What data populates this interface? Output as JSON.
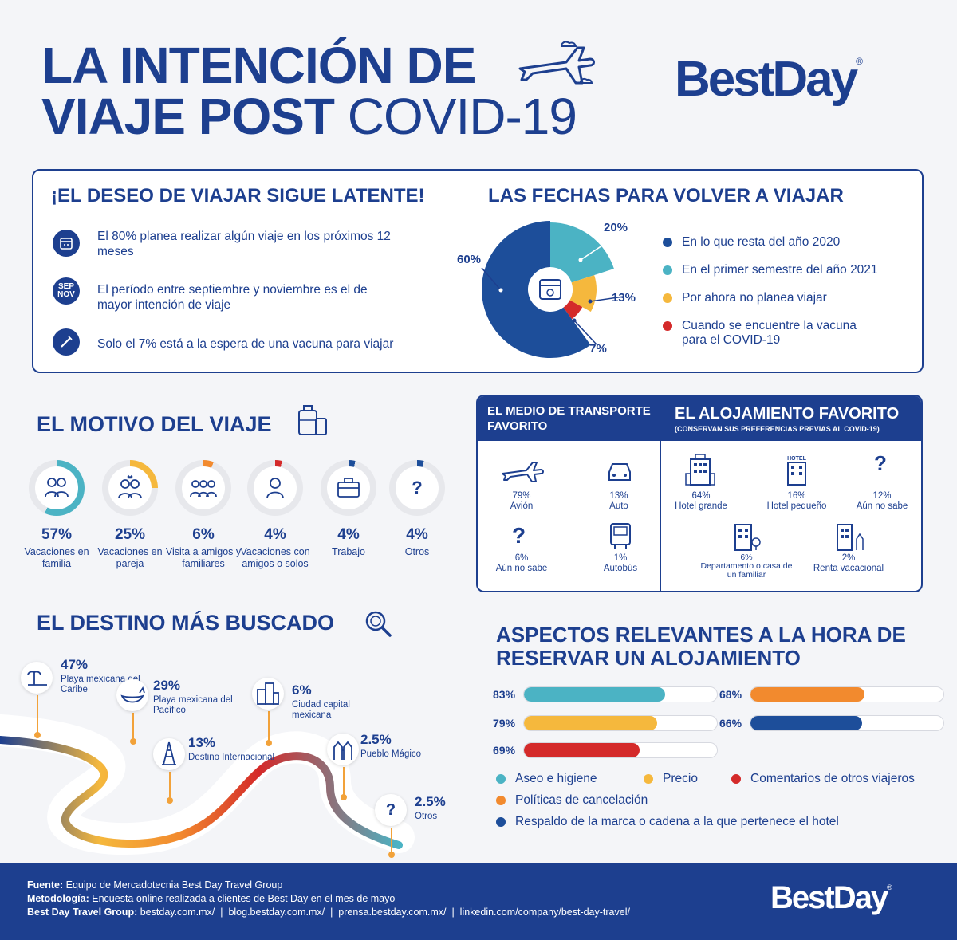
{
  "header": {
    "title_line1": "LA INTENCIÓN DE",
    "title_line2_bold": "VIAJE POST",
    "title_line2_thin": "COVID-19",
    "brand": "BestDay",
    "brand_mark": "®"
  },
  "desire": {
    "heading": "¡EL DESEO DE VIAJAR SIGUE LATENTE!",
    "items": [
      {
        "icon": "calendar-icon",
        "text": "El 80% planea realizar algún viaje en los próximos 12 meses"
      },
      {
        "icon": "sep-nov-icon",
        "badge_line1": "SEP",
        "badge_line2": "NOV",
        "text": "El período entre septiembre y noviembre es el de mayor intención de viaje"
      },
      {
        "icon": "vaccine-icon",
        "text": "Solo el 7% está a la espera de una vacuna para viajar"
      }
    ]
  },
  "dates": {
    "heading": "LAS FECHAS PARA VOLVER A VIAJAR",
    "legend": [
      {
        "label": "En lo que resta del año 2020",
        "color": "#1d4e9a"
      },
      {
        "label": "En el primer semestre del año 2021",
        "color": "#4bb3c4"
      },
      {
        "label": "Por ahora no planea viajar",
        "color": "#f5b83d"
      },
      {
        "label": "Cuando se encuentre la vacuna para el COVID-19",
        "color": "#d42a2a"
      }
    ]
  },
  "chart_data": {
    "type": "pie",
    "categories": [
      "En lo que resta del año 2020",
      "En el primer semestre del año 2021",
      "Por ahora no planea viajar",
      "Cuando se encuentre la vacuna para el COVID-19"
    ],
    "values": [
      60,
      20,
      13,
      7
    ],
    "labels": [
      "60%",
      "20%",
      "13%",
      "7%"
    ],
    "colors": [
      "#1d4e9a",
      "#4bb3c4",
      "#f5b83d",
      "#d42a2a"
    ]
  },
  "motive": {
    "heading": "EL MOTIVO DEL VIAJE",
    "items": [
      {
        "pct": "57%",
        "value": 57,
        "label": "Vacaciones en familia",
        "icon": "family-icon",
        "color": "#4bb3c4"
      },
      {
        "pct": "25%",
        "value": 25,
        "label": "Vacaciones en pareja",
        "icon": "couple-icon",
        "color": "#f5b83d"
      },
      {
        "pct": "6%",
        "value": 6,
        "label": "Visita a amigos y familiares",
        "icon": "friends-icon",
        "color": "#f28a2e"
      },
      {
        "pct": "4%",
        "value": 4,
        "label": "Vacaciones con amigos o solos",
        "icon": "person-icon",
        "color": "#d42a2a"
      },
      {
        "pct": "4%",
        "value": 4,
        "label": "Trabajo",
        "icon": "briefcase-icon",
        "color": "#1d4e9a"
      },
      {
        "pct": "4%",
        "value": 4,
        "label": "Otros",
        "icon": "question-icon",
        "color": "#1d4e9a"
      }
    ]
  },
  "transport": {
    "heading": "EL MEDIO DE TRANSPORTE FAVORITO",
    "items": [
      {
        "pct": "79%",
        "label": "Avión",
        "icon": "plane-icon"
      },
      {
        "pct": "13%",
        "label": "Auto",
        "icon": "car-icon"
      },
      {
        "pct": "6%",
        "label": "Aún no sabe",
        "icon": "question-icon"
      },
      {
        "pct": "1%",
        "label": "Autobús",
        "icon": "bus-icon"
      }
    ]
  },
  "lodging": {
    "heading": "EL ALOJAMIENTO FAVORITO",
    "subheading": "(CONSERVAN SUS PREFERENCIAS PREVIAS AL COVID-19)",
    "items": [
      {
        "pct": "64%",
        "label": "Hotel grande",
        "icon": "hotel-large-icon"
      },
      {
        "pct": "16%",
        "label": "Hotel pequeño",
        "icon": "hotel-small-icon",
        "sign": "HOTEL"
      },
      {
        "pct": "12%",
        "label": "Aún no sabe",
        "icon": "question-icon"
      },
      {
        "pct": "6%",
        "label": "Departamento o casa de un familiar",
        "icon": "apartment-icon"
      },
      {
        "pct": "2%",
        "label": "Renta vacacional",
        "icon": "vacation-rental-icon"
      }
    ]
  },
  "destination": {
    "heading": "EL DESTINO MÁS BUSCADO",
    "items": [
      {
        "pct": "47%",
        "label": "Playa mexicana del Caribe",
        "icon": "beach-icon"
      },
      {
        "pct": "29%",
        "label": "Playa mexicana del Pacífico",
        "icon": "whale-icon"
      },
      {
        "pct": "13%",
        "label": "Destino Internacional",
        "icon": "eiffel-icon"
      },
      {
        "pct": "6%",
        "label": "Ciudad capital mexicana",
        "icon": "city-icon"
      },
      {
        "pct": "2.5%",
        "label": "Pueblo Mágico",
        "icon": "church-icon"
      },
      {
        "pct": "2.5%",
        "label": "Otros",
        "icon": "question-icon"
      }
    ]
  },
  "aspects": {
    "heading_line1": "ASPECTOS RELEVANTES A LA HORA DE",
    "heading_line2": "RESERVAR UN ALOJAMIENTO",
    "bars": [
      {
        "pct": "83%",
        "value": 83,
        "label": "Aseo e higiene",
        "color": "#4bb3c4"
      },
      {
        "pct": "79%",
        "value": 79,
        "label": "Precio",
        "color": "#f5b83d"
      },
      {
        "pct": "69%",
        "value": 69,
        "label": "Comentarios de otros viajeros",
        "color": "#d42a2a"
      },
      {
        "pct": "68%",
        "value": 68,
        "label": "Políticas de cancelación",
        "color": "#f28a2e"
      },
      {
        "pct": "66%",
        "value": 66,
        "label": "Respaldo de la marca o cadena a la que pertenece el hotel",
        "color": "#1d4e9a"
      }
    ]
  },
  "footer": {
    "source_label": "Fuente:",
    "source": "Equipo de Mercadotecnia  Best Day Travel Group",
    "method_label": "Metodología:",
    "method": "Encuesta online realizada a clientes de Best Day en el mes de mayo",
    "group_label": "Best Day Travel Group:",
    "links": [
      "bestday.com.mx/",
      "blog.bestday.com.mx/",
      "prensa.bestday.com.mx/",
      "linkedin.com/company/best-day-travel/"
    ],
    "separator": "|",
    "brand": "BestDay",
    "brand_mark": "®"
  }
}
